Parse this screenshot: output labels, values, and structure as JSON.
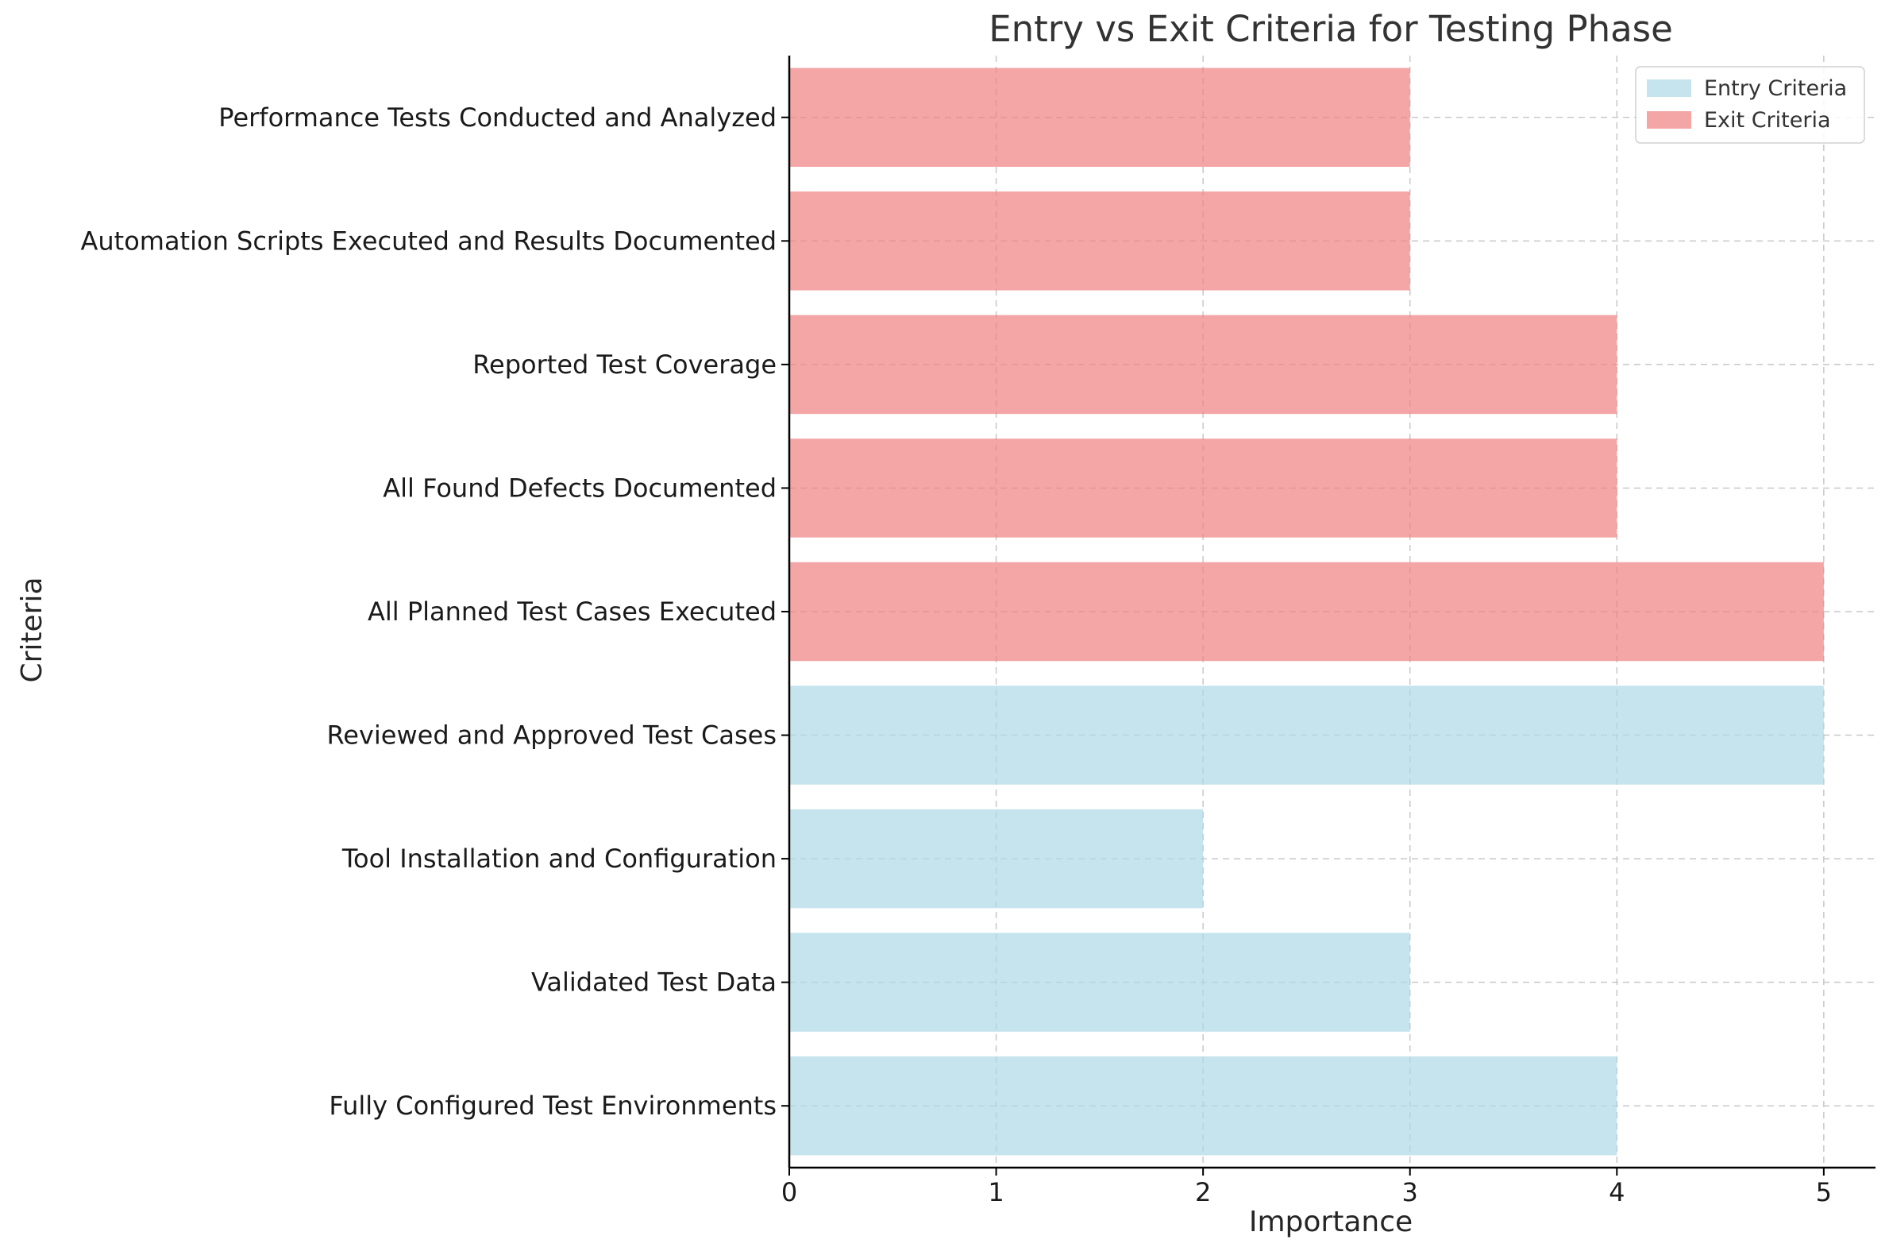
{
  "chart_data": {
    "type": "bar",
    "orientation": "horizontal",
    "title": "Entry vs Exit Criteria for Testing Phase",
    "xlabel": "Importance",
    "ylabel": "Criteria",
    "xlim": [
      0,
      5.25
    ],
    "xticks": [
      0,
      1,
      2,
      3,
      4,
      5
    ],
    "grid": true,
    "legend_position": "top-right",
    "categories": [
      "Fully Configured Test Environments",
      "Validated Test Data",
      "Tool Installation and Configuration",
      "Reviewed and Approved Test Cases",
      "All Planned Test Cases Executed",
      "All Found Defects Documented",
      "Reported Test Coverage",
      "Automation Scripts Executed and Results Documented",
      "Performance Tests Conducted and Analyzed"
    ],
    "series": [
      {
        "name": "Entry Criteria",
        "color": "#add8e6",
        "values": [
          4,
          3,
          2,
          5,
          null,
          null,
          null,
          null,
          null
        ]
      },
      {
        "name": "Exit Criteria",
        "color": "#f08080",
        "values": [
          null,
          null,
          null,
          null,
          5,
          4,
          4,
          3,
          3
        ]
      }
    ]
  }
}
